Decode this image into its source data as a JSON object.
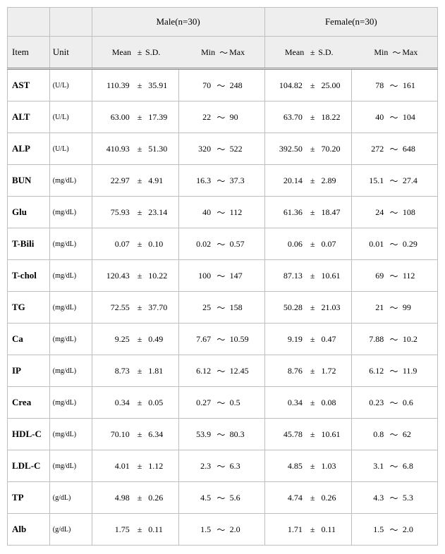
{
  "table": {
    "type": "table",
    "colors": {
      "header_bg": "#eeeeee",
      "border": "#bfbfbf",
      "text": "#000000",
      "background": "#ffffff"
    },
    "fonts": {
      "family": "Times New Roman, serif",
      "header_size_pt": 13,
      "item_size_pt": 13,
      "unit_size_pt": 10,
      "value_size_pt": 12
    },
    "headers": {
      "male_group": "Male(n=30)",
      "female_group": "Female(n=30)",
      "item": "Item",
      "unit": "Unit",
      "mean": "Mean",
      "pm": "±",
      "sd": "S.D.",
      "min": "Min",
      "tilde": "～",
      "max": "Max"
    },
    "rows": [
      {
        "item": "AST",
        "unit": "(U/L)",
        "m": {
          "mean": "110.39",
          "sd": "35.91",
          "min": "70",
          "max": "248"
        },
        "f": {
          "mean": "104.82",
          "sd": "25.00",
          "min": "78",
          "max": "161"
        }
      },
      {
        "item": "ALT",
        "unit": "(U/L)",
        "m": {
          "mean": "63.00",
          "sd": "17.39",
          "min": "22",
          "max": "90"
        },
        "f": {
          "mean": "63.70",
          "sd": "18.22",
          "min": "40",
          "max": "104"
        }
      },
      {
        "item": "ALP",
        "unit": "(U/L)",
        "m": {
          "mean": "410.93",
          "sd": "51.30",
          "min": "320",
          "max": "522"
        },
        "f": {
          "mean": "392.50",
          "sd": "70.20",
          "min": "272",
          "max": "648"
        }
      },
      {
        "item": "BUN",
        "unit": "(mg/dL)",
        "m": {
          "mean": "22.97",
          "sd": "4.91",
          "min": "16.3",
          "max": "37.3"
        },
        "f": {
          "mean": "20.14",
          "sd": "2.89",
          "min": "15.1",
          "max": "27.4"
        }
      },
      {
        "item": "Glu",
        "unit": "(mg/dL)",
        "m": {
          "mean": "75.93",
          "sd": "23.14",
          "min": "40",
          "max": "112"
        },
        "f": {
          "mean": "61.36",
          "sd": "18.47",
          "min": "24",
          "max": "108"
        }
      },
      {
        "item": "T-Bili",
        "unit": "(mg/dL)",
        "m": {
          "mean": "0.07",
          "sd": "0.10",
          "min": "0.02",
          "max": "0.57"
        },
        "f": {
          "mean": "0.06",
          "sd": "0.07",
          "min": "0.01",
          "max": "0.29"
        }
      },
      {
        "item": "T-chol",
        "unit": "(mg/dL)",
        "m": {
          "mean": "120.43",
          "sd": "10.22",
          "min": "100",
          "max": "147"
        },
        "f": {
          "mean": "87.13",
          "sd": "10.61",
          "min": "69",
          "max": "112"
        }
      },
      {
        "item": "TG",
        "unit": "(mg/dL)",
        "m": {
          "mean": "72.55",
          "sd": "37.70",
          "min": "25",
          "max": "158"
        },
        "f": {
          "mean": "50.28",
          "sd": "21.03",
          "min": "21",
          "max": "99"
        }
      },
      {
        "item": "Ca",
        "unit": "(mg/dL)",
        "m": {
          "mean": "9.25",
          "sd": "0.49",
          "min": "7.67",
          "max": "10.59"
        },
        "f": {
          "mean": "9.19",
          "sd": "0.47",
          "min": "7.88",
          "max": "10.2"
        }
      },
      {
        "item": "IP",
        "unit": "(mg/dL)",
        "m": {
          "mean": "8.73",
          "sd": "1.81",
          "min": "6.12",
          "max": "12.45"
        },
        "f": {
          "mean": "8.76",
          "sd": "1.72",
          "min": "6.12",
          "max": "11.9"
        }
      },
      {
        "item": "Crea",
        "unit": "(mg/dL)",
        "m": {
          "mean": "0.34",
          "sd": "0.05",
          "min": "0.27",
          "max": "0.5"
        },
        "f": {
          "mean": "0.34",
          "sd": "0.08",
          "min": "0.23",
          "max": "0.6"
        }
      },
      {
        "item": "HDL-C",
        "unit": "(mg/dL)",
        "m": {
          "mean": "70.10",
          "sd": "6.34",
          "min": "53.9",
          "max": "80.3"
        },
        "f": {
          "mean": "45.78",
          "sd": "10.61",
          "min": "0.8",
          "max": "62"
        }
      },
      {
        "item": "LDL-C",
        "unit": "(mg/dL)",
        "m": {
          "mean": "4.01",
          "sd": "1.12",
          "min": "2.3",
          "max": "6.3"
        },
        "f": {
          "mean": "4.85",
          "sd": "1.03",
          "min": "3.1",
          "max": "6.8"
        }
      },
      {
        "item": "TP",
        "unit": "(g/dL)",
        "m": {
          "mean": "4.98",
          "sd": "0.26",
          "min": "4.5",
          "max": "5.6"
        },
        "f": {
          "mean": "4.74",
          "sd": "0.26",
          "min": "4.3",
          "max": "5.3"
        }
      },
      {
        "item": "Alb",
        "unit": "(g/dL)",
        "m": {
          "mean": "1.75",
          "sd": "0.11",
          "min": "1.5",
          "max": "2.0"
        },
        "f": {
          "mean": "1.71",
          "sd": "0.11",
          "min": "1.5",
          "max": "2.0"
        }
      }
    ]
  }
}
